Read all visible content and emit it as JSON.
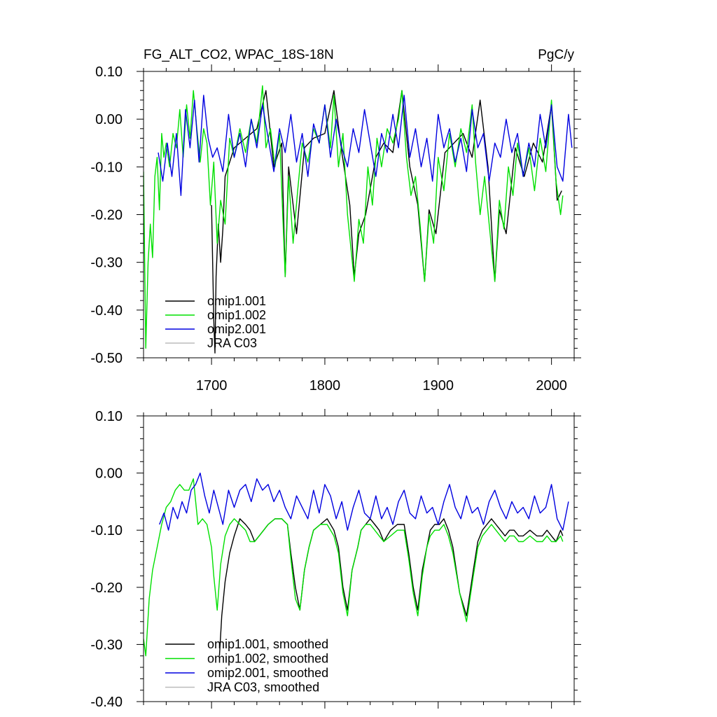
{
  "chart_data": [
    {
      "type": "line",
      "title_left": "FG_ALT_CO2, WPAC_18S-18N",
      "title_right": "PgC/y",
      "xlim": [
        1640,
        2020
      ],
      "ylim": [
        -0.5,
        0.1
      ],
      "x_ticks": [
        1700,
        1800,
        1900,
        2000
      ],
      "x_tick_labels": [
        "1700",
        "1800",
        "1900",
        "2000"
      ],
      "y_ticks": [
        0.1,
        0.0,
        -0.1,
        -0.2,
        -0.3,
        -0.4,
        -0.5
      ],
      "y_tick_labels": [
        "0.10",
        "0.00",
        "-0.10",
        "-0.20",
        "-0.30",
        "-0.40",
        "-0.50"
      ],
      "legend_position": "bottom-left",
      "series": [
        {
          "name": "omip1.001",
          "color": "#000000",
          "x": [
            1700,
            1701,
            1702,
            1703,
            1704,
            1706,
            1708,
            1710,
            1712,
            1720,
            1730,
            1740,
            1748,
            1755,
            1762,
            1765,
            1768,
            1775,
            1782,
            1790,
            1800,
            1808,
            1815,
            1822,
            1826,
            1830,
            1836,
            1845,
            1852,
            1860,
            1868,
            1875,
            1882,
            1888,
            1892,
            1898,
            1906,
            1914,
            1922,
            1930,
            1937,
            1944,
            1950,
            1954,
            1960,
            1968,
            1976,
            1984,
            1992,
            2000,
            2005,
            2009
          ],
          "y": [
            -0.18,
            -0.3,
            -0.42,
            -0.49,
            -0.33,
            -0.22,
            -0.3,
            -0.23,
            -0.12,
            -0.06,
            -0.04,
            -0.02,
            0.06,
            -0.1,
            -0.05,
            -0.33,
            -0.1,
            -0.24,
            -0.06,
            -0.04,
            -0.03,
            0.06,
            -0.07,
            -0.18,
            -0.33,
            -0.24,
            -0.2,
            -0.08,
            -0.05,
            -0.07,
            0.06,
            -0.1,
            -0.18,
            -0.34,
            -0.19,
            -0.24,
            -0.07,
            -0.05,
            -0.03,
            -0.08,
            0.04,
            -0.1,
            -0.34,
            -0.19,
            -0.24,
            -0.06,
            -0.12,
            -0.05,
            -0.09,
            0.03,
            -0.17,
            -0.15
          ]
        },
        {
          "name": "omip1.002",
          "color": "#00e000",
          "x": [
            1640,
            1642,
            1644,
            1646,
            1648,
            1650,
            1652,
            1654,
            1656,
            1658,
            1660,
            1663,
            1666,
            1669,
            1672,
            1675,
            1678,
            1681,
            1684,
            1687,
            1690,
            1693,
            1696,
            1699,
            1702,
            1705,
            1708,
            1712,
            1716,
            1720,
            1725,
            1730,
            1735,
            1740,
            1745,
            1748,
            1752,
            1756,
            1760,
            1765,
            1768,
            1772,
            1776,
            1780,
            1785,
            1790,
            1795,
            1800,
            1805,
            1808,
            1812,
            1816,
            1820,
            1826,
            1830,
            1834,
            1838,
            1842,
            1846,
            1850,
            1855,
            1860,
            1865,
            1868,
            1872,
            1876,
            1880,
            1884,
            1888,
            1892,
            1896,
            1900,
            1905,
            1910,
            1915,
            1920,
            1925,
            1930,
            1933,
            1937,
            1941,
            1945,
            1950,
            1954,
            1958,
            1962,
            1966,
            1970,
            1975,
            1980,
            1985,
            1990,
            1995,
            2000,
            2004,
            2008,
            2010
          ],
          "y": [
            -0.11,
            -0.48,
            -0.3,
            -0.22,
            -0.29,
            -0.12,
            -0.08,
            -0.19,
            -0.03,
            -0.08,
            -0.05,
            -0.1,
            -0.03,
            -0.06,
            0.02,
            -0.08,
            0.03,
            -0.04,
            0.06,
            -0.02,
            -0.09,
            -0.02,
            -0.05,
            -0.18,
            -0.09,
            -0.26,
            -0.17,
            -0.22,
            -0.04,
            -0.08,
            -0.02,
            -0.07,
            0.0,
            -0.05,
            0.07,
            -0.06,
            -0.02,
            -0.1,
            -0.03,
            -0.33,
            -0.12,
            -0.26,
            -0.15,
            -0.05,
            -0.09,
            -0.02,
            -0.05,
            0.03,
            -0.06,
            0.05,
            -0.1,
            -0.03,
            -0.2,
            -0.34,
            -0.21,
            -0.26,
            -0.1,
            -0.18,
            -0.04,
            -0.1,
            -0.02,
            -0.05,
            0.0,
            0.06,
            -0.08,
            -0.16,
            -0.12,
            -0.22,
            -0.34,
            -0.2,
            -0.26,
            -0.08,
            -0.15,
            -0.03,
            -0.1,
            -0.02,
            -0.07,
            0.03,
            -0.09,
            -0.2,
            -0.12,
            -0.22,
            -0.34,
            -0.17,
            -0.23,
            -0.1,
            -0.16,
            -0.05,
            -0.12,
            -0.06,
            -0.15,
            -0.04,
            -0.11,
            0.04,
            -0.13,
            -0.2,
            -0.16
          ]
        },
        {
          "name": "omip2.001",
          "color": "#0000e0",
          "x": [
            1653,
            1657,
            1661,
            1665,
            1669,
            1673,
            1677,
            1681,
            1685,
            1689,
            1693,
            1697,
            1701,
            1705,
            1710,
            1715,
            1720,
            1725,
            1730,
            1735,
            1740,
            1745,
            1750,
            1755,
            1760,
            1765,
            1770,
            1775,
            1780,
            1785,
            1790,
            1795,
            1800,
            1805,
            1810,
            1815,
            1820,
            1825,
            1830,
            1835,
            1840,
            1845,
            1850,
            1855,
            1860,
            1865,
            1870,
            1875,
            1880,
            1885,
            1890,
            1895,
            1900,
            1905,
            1910,
            1915,
            1920,
            1925,
            1930,
            1935,
            1940,
            1945,
            1950,
            1955,
            1960,
            1965,
            1970,
            1975,
            1980,
            1985,
            1990,
            1995,
            2000,
            2005,
            2010,
            2015,
            2018
          ],
          "y": [
            -0.07,
            -0.13,
            -0.05,
            -0.12,
            -0.03,
            -0.16,
            0.02,
            -0.06,
            0.04,
            -0.09,
            0.05,
            -0.04,
            -0.08,
            -0.06,
            -0.11,
            0.01,
            -0.08,
            -0.03,
            -0.1,
            0.0,
            -0.06,
            0.03,
            -0.04,
            -0.11,
            -0.02,
            -0.07,
            0.01,
            -0.09,
            -0.03,
            -0.12,
            -0.01,
            -0.05,
            0.03,
            -0.08,
            0.0,
            -0.06,
            -0.1,
            -0.02,
            -0.07,
            0.02,
            -0.05,
            -0.12,
            -0.03,
            -0.07,
            0.01,
            -0.06,
            0.05,
            -0.08,
            -0.02,
            -0.1,
            -0.04,
            -0.13,
            0.01,
            -0.06,
            -0.02,
            -0.09,
            -0.04,
            -0.11,
            0.02,
            -0.06,
            -0.03,
            -0.13,
            -0.05,
            -0.08,
            0.0,
            -0.07,
            -0.03,
            -0.12,
            -0.05,
            -0.1,
            0.01,
            -0.06,
            0.03,
            -0.1,
            -0.13,
            0.01,
            -0.06
          ]
        },
        {
          "name": "JRA C03",
          "color": "#bbbbbb",
          "x": [],
          "y": []
        }
      ]
    },
    {
      "type": "line",
      "xlim": [
        1640,
        2020
      ],
      "ylim": [
        -0.4,
        0.1
      ],
      "x_ticks": [
        1700,
        1800,
        1900,
        2000
      ],
      "x_tick_labels": [],
      "y_ticks": [
        0.1,
        0.0,
        -0.1,
        -0.2,
        -0.3,
        -0.4
      ],
      "y_tick_labels": [
        "0.10",
        "0.00",
        "-0.10",
        "-0.20",
        "-0.30",
        "-0.40"
      ],
      "legend_position": "bottom-left",
      "series": [
        {
          "name": "omip1.001, smoothed",
          "color": "#000000",
          "x": [
            1707,
            1709,
            1712,
            1716,
            1720,
            1725,
            1730,
            1734,
            1738,
            1742,
            1746,
            1750,
            1756,
            1762,
            1767,
            1770,
            1774,
            1778,
            1782,
            1786,
            1790,
            1796,
            1802,
            1808,
            1812,
            1816,
            1820,
            1824,
            1829,
            1832,
            1836,
            1840,
            1844,
            1848,
            1852,
            1858,
            1864,
            1870,
            1874,
            1878,
            1882,
            1886,
            1890,
            1893,
            1897,
            1901,
            1905,
            1909,
            1913,
            1919,
            1925,
            1931,
            1935,
            1939,
            1943,
            1947,
            1951,
            1955,
            1959,
            1963,
            1967,
            1971,
            1975,
            1981,
            1987,
            1992,
            1996,
            2000,
            2004,
            2008,
            2010
          ],
          "y": [
            -0.32,
            -0.25,
            -0.19,
            -0.14,
            -0.11,
            -0.08,
            -0.09,
            -0.1,
            -0.12,
            -0.11,
            -0.1,
            -0.09,
            -0.08,
            -0.08,
            -0.09,
            -0.14,
            -0.2,
            -0.24,
            -0.17,
            -0.13,
            -0.1,
            -0.09,
            -0.08,
            -0.1,
            -0.13,
            -0.2,
            -0.24,
            -0.17,
            -0.13,
            -0.1,
            -0.09,
            -0.08,
            -0.09,
            -0.1,
            -0.12,
            -0.1,
            -0.09,
            -0.09,
            -0.14,
            -0.2,
            -0.24,
            -0.17,
            -0.13,
            -0.1,
            -0.09,
            -0.09,
            -0.08,
            -0.1,
            -0.13,
            -0.21,
            -0.25,
            -0.17,
            -0.12,
            -0.1,
            -0.09,
            -0.08,
            -0.09,
            -0.1,
            -0.11,
            -0.1,
            -0.1,
            -0.11,
            -0.11,
            -0.1,
            -0.11,
            -0.11,
            -0.1,
            -0.11,
            -0.12,
            -0.1,
            -0.11
          ]
        },
        {
          "name": "omip1.002, smoothed",
          "color": "#00e000",
          "x": [
            1640,
            1642,
            1645,
            1648,
            1652,
            1656,
            1660,
            1664,
            1668,
            1672,
            1676,
            1680,
            1684,
            1688,
            1692,
            1696,
            1700,
            1702,
            1705,
            1708,
            1712,
            1716,
            1720,
            1725,
            1730,
            1734,
            1738,
            1742,
            1746,
            1750,
            1756,
            1762,
            1767,
            1770,
            1774,
            1778,
            1782,
            1786,
            1790,
            1796,
            1802,
            1808,
            1812,
            1816,
            1820,
            1824,
            1829,
            1832,
            1836,
            1840,
            1844,
            1848,
            1852,
            1858,
            1864,
            1870,
            1874,
            1878,
            1882,
            1886,
            1890,
            1893,
            1897,
            1901,
            1905,
            1909,
            1913,
            1919,
            1925,
            1931,
            1935,
            1939,
            1943,
            1947,
            1951,
            1955,
            1959,
            1963,
            1967,
            1971,
            1975,
            1981,
            1987,
            1992,
            1996,
            2000,
            2004,
            2008,
            2010
          ],
          "y": [
            -0.29,
            -0.32,
            -0.22,
            -0.17,
            -0.13,
            -0.09,
            -0.06,
            -0.05,
            -0.03,
            -0.02,
            -0.03,
            -0.03,
            -0.01,
            -0.09,
            -0.08,
            -0.09,
            -0.13,
            -0.18,
            -0.24,
            -0.16,
            -0.11,
            -0.09,
            -0.08,
            -0.09,
            -0.1,
            -0.12,
            -0.12,
            -0.11,
            -0.1,
            -0.09,
            -0.08,
            -0.08,
            -0.09,
            -0.15,
            -0.22,
            -0.24,
            -0.17,
            -0.13,
            -0.1,
            -0.09,
            -0.09,
            -0.11,
            -0.14,
            -0.21,
            -0.25,
            -0.17,
            -0.13,
            -0.1,
            -0.09,
            -0.09,
            -0.1,
            -0.11,
            -0.12,
            -0.11,
            -0.1,
            -0.1,
            -0.15,
            -0.21,
            -0.25,
            -0.18,
            -0.13,
            -0.11,
            -0.1,
            -0.1,
            -0.09,
            -0.11,
            -0.14,
            -0.21,
            -0.26,
            -0.18,
            -0.13,
            -0.11,
            -0.1,
            -0.09,
            -0.1,
            -0.11,
            -0.12,
            -0.11,
            -0.11,
            -0.12,
            -0.12,
            -0.11,
            -0.12,
            -0.12,
            -0.11,
            -0.12,
            -0.12,
            -0.11,
            -0.12
          ]
        },
        {
          "name": "omip2.001, smoothed",
          "color": "#0000e0",
          "x": [
            1654,
            1658,
            1662,
            1666,
            1670,
            1674,
            1678,
            1682,
            1686,
            1690,
            1694,
            1698,
            1702,
            1706,
            1710,
            1715,
            1720,
            1725,
            1730,
            1735,
            1740,
            1745,
            1750,
            1755,
            1760,
            1765,
            1770,
            1775,
            1780,
            1785,
            1790,
            1795,
            1800,
            1805,
            1810,
            1815,
            1820,
            1825,
            1830,
            1835,
            1840,
            1845,
            1850,
            1855,
            1860,
            1865,
            1870,
            1875,
            1880,
            1885,
            1890,
            1895,
            1900,
            1905,
            1910,
            1915,
            1920,
            1925,
            1930,
            1935,
            1940,
            1945,
            1950,
            1955,
            1960,
            1965,
            1970,
            1975,
            1980,
            1985,
            1990,
            1995,
            2000,
            2005,
            2010,
            2015
          ],
          "y": [
            -0.09,
            -0.07,
            -0.1,
            -0.06,
            -0.08,
            -0.05,
            -0.07,
            -0.03,
            -0.02,
            0.0,
            -0.04,
            -0.07,
            -0.03,
            -0.06,
            -0.09,
            -0.03,
            -0.06,
            -0.03,
            -0.02,
            -0.05,
            -0.01,
            -0.03,
            -0.02,
            -0.05,
            -0.03,
            -0.06,
            -0.08,
            -0.04,
            -0.06,
            -0.08,
            -0.03,
            -0.07,
            -0.02,
            -0.04,
            -0.08,
            -0.05,
            -0.1,
            -0.06,
            -0.03,
            -0.07,
            -0.08,
            -0.04,
            -0.08,
            -0.06,
            -0.09,
            -0.05,
            -0.03,
            -0.07,
            -0.08,
            -0.04,
            -0.07,
            -0.06,
            -0.09,
            -0.05,
            -0.02,
            -0.06,
            -0.08,
            -0.04,
            -0.07,
            -0.06,
            -0.09,
            -0.05,
            -0.03,
            -0.06,
            -0.08,
            -0.05,
            -0.07,
            -0.06,
            -0.08,
            -0.04,
            -0.07,
            -0.06,
            -0.02,
            -0.08,
            -0.1,
            -0.05
          ]
        },
        {
          "name": "JRA C03, smoothed",
          "color": "#bbbbbb",
          "x": [],
          "y": []
        }
      ]
    }
  ]
}
